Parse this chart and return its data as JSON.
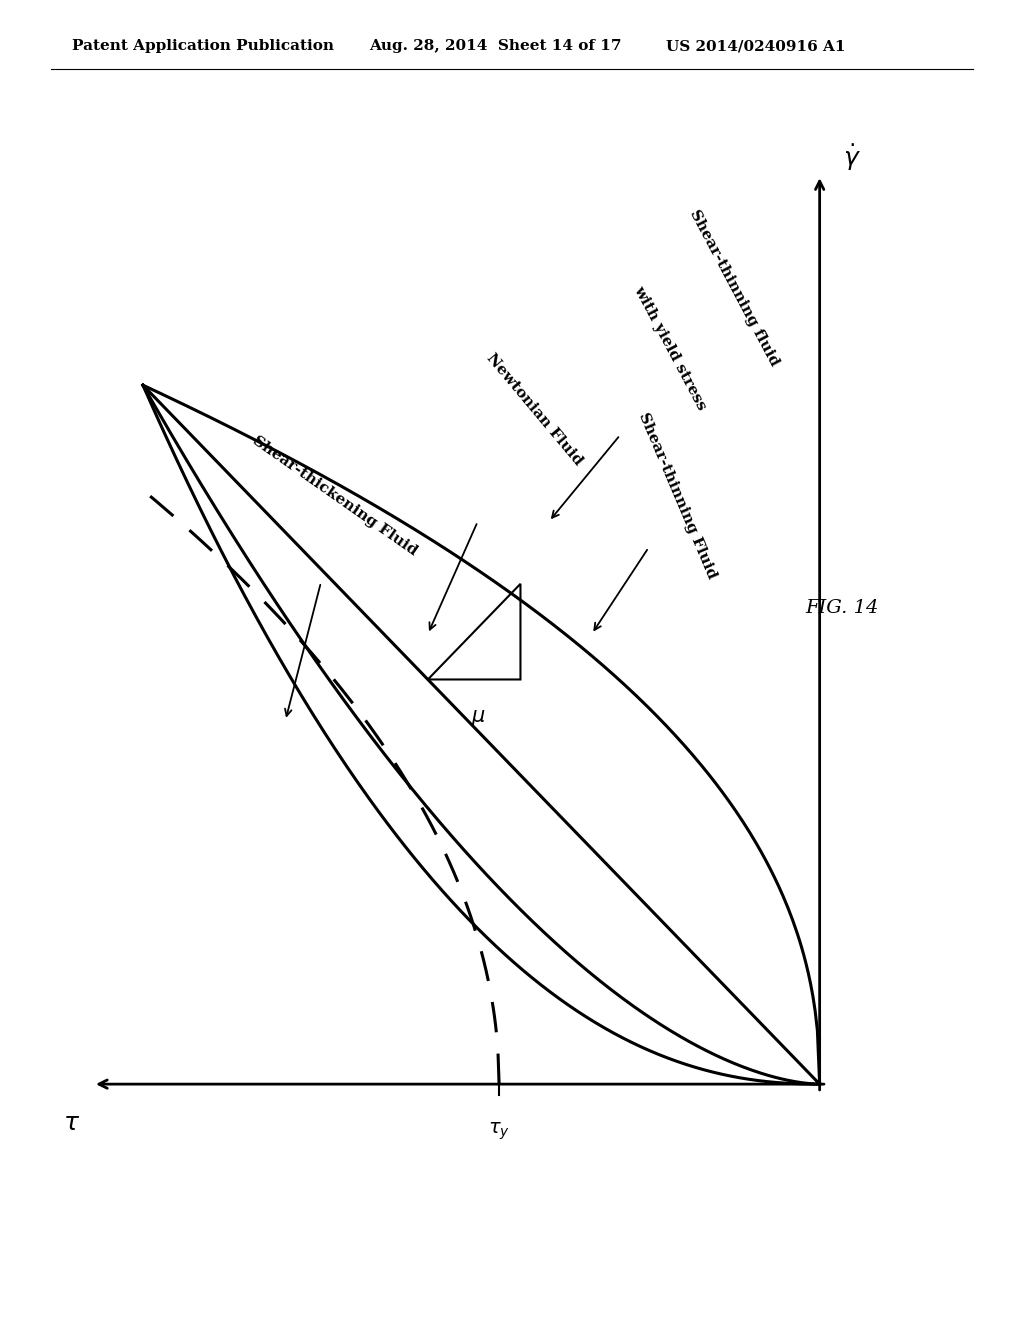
{
  "header_left": "Patent Application Publication",
  "header_center": "Aug. 28, 2014  Sheet 14 of 17",
  "header_right": "US 2014/0240916 A1",
  "background_color": "#ffffff",
  "text_color": "#000000",
  "fig_label": "FIG. 14",
  "labels": {
    "shear_thinning": "Shear-thinning Fluid",
    "shear_thinning_yield_1": "Shear-thinning fluid",
    "shear_thinning_yield_2": "with yield stress",
    "newtonian": "Newtonian Fluid",
    "shear_thickening": "Shear-thickening Fluid"
  },
  "header_fontsize": 11,
  "label_fontsize": 11,
  "axis_label_fontsize": 18,
  "mu_fontsize": 15
}
